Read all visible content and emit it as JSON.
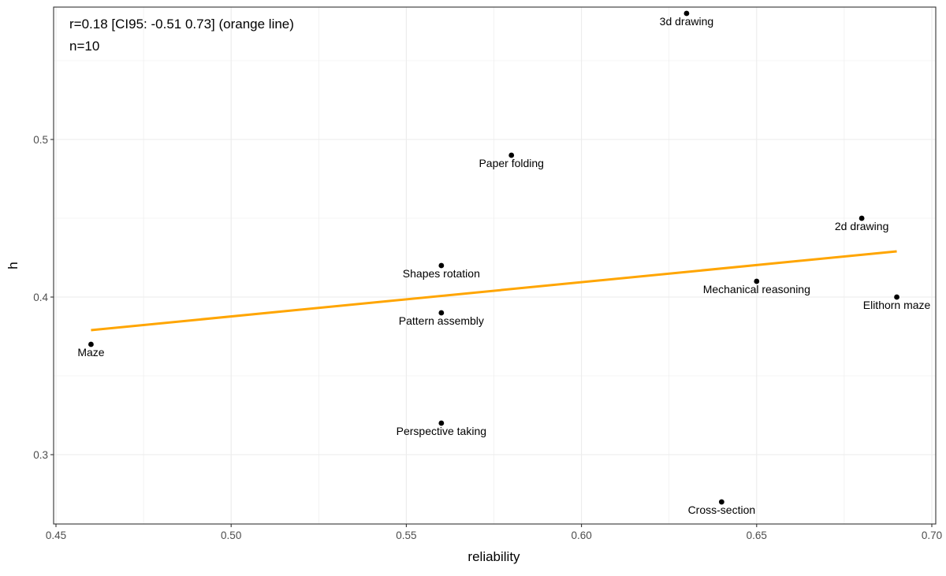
{
  "chart_data": {
    "type": "scatter",
    "title": "",
    "xlabel": "reliability",
    "ylabel": "h",
    "xlim": [
      0.45,
      0.7
    ],
    "ylim": [
      0.256,
      0.584
    ],
    "x_ticks": [
      0.45,
      0.5,
      0.55,
      0.6,
      0.65,
      0.7
    ],
    "x_tick_labels": [
      "0.45",
      "0.50",
      "0.55",
      "0.60",
      "0.65",
      "0.70"
    ],
    "y_ticks": [
      0.3,
      0.4,
      0.5
    ],
    "y_tick_labels": [
      "0.3",
      "0.4",
      "0.5"
    ],
    "grid": true,
    "annotations": [
      "r=0.18 [CI95: -0.51 0.73] (orange line)",
      "n=10"
    ],
    "points": [
      {
        "label": "3d drawing",
        "x": 0.63,
        "y": 0.58
      },
      {
        "label": "Paper folding",
        "x": 0.58,
        "y": 0.49
      },
      {
        "label": "2d drawing",
        "x": 0.68,
        "y": 0.45
      },
      {
        "label": "Shapes rotation",
        "x": 0.56,
        "y": 0.42
      },
      {
        "label": "Mechanical reasoning",
        "x": 0.65,
        "y": 0.41
      },
      {
        "label": "Elithorn maze",
        "x": 0.69,
        "y": 0.4
      },
      {
        "label": "Pattern assembly",
        "x": 0.56,
        "y": 0.39
      },
      {
        "label": "Maze",
        "x": 0.46,
        "y": 0.37
      },
      {
        "label": "Perspective taking",
        "x": 0.56,
        "y": 0.32
      },
      {
        "label": "Cross-section",
        "x": 0.64,
        "y": 0.27
      }
    ],
    "fit_line": {
      "x": [
        0.46,
        0.69
      ],
      "y": [
        0.379,
        0.429
      ],
      "color": "#FFA500"
    },
    "point_color": "#000000",
    "grid_color": "#ebebeb",
    "panel_border_color": "#333333"
  }
}
